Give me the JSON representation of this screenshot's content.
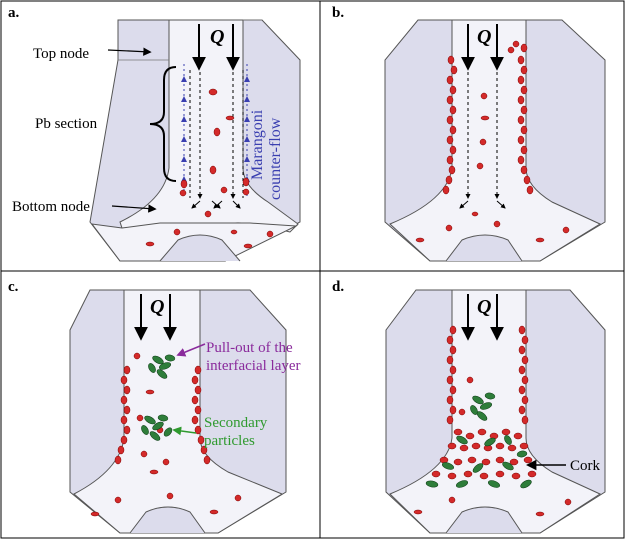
{
  "panels": {
    "a": {
      "letter": "a.",
      "q": "Q"
    },
    "b": {
      "letter": "b.",
      "q": "Q"
    },
    "c": {
      "letter": "c.",
      "q": "Q"
    },
    "d": {
      "letter": "d.",
      "q": "Q"
    }
  },
  "labels": {
    "top_node": "Top node",
    "pb_section": "Pb section",
    "bottom_node": "Bottom node",
    "marangoni_line1": "Marangoni",
    "marangoni_line2": "counter-flow",
    "pullout_line1": "Pull-out of the",
    "pullout_line2": "interfacial layer",
    "secondary_line1": "Secondary",
    "secondary_line2": "particles",
    "cork": "Cork"
  },
  "colors": {
    "domain_fill": "#dcdcec",
    "channel_fill": "#f3f3f9",
    "particle_red": "#d42a2a",
    "particle_green": "#2e7d3a",
    "marangoni_blue": "#3a3fb0",
    "pullout_purple": "#8a2b9c",
    "secondary_green": "#2f9a2f"
  }
}
